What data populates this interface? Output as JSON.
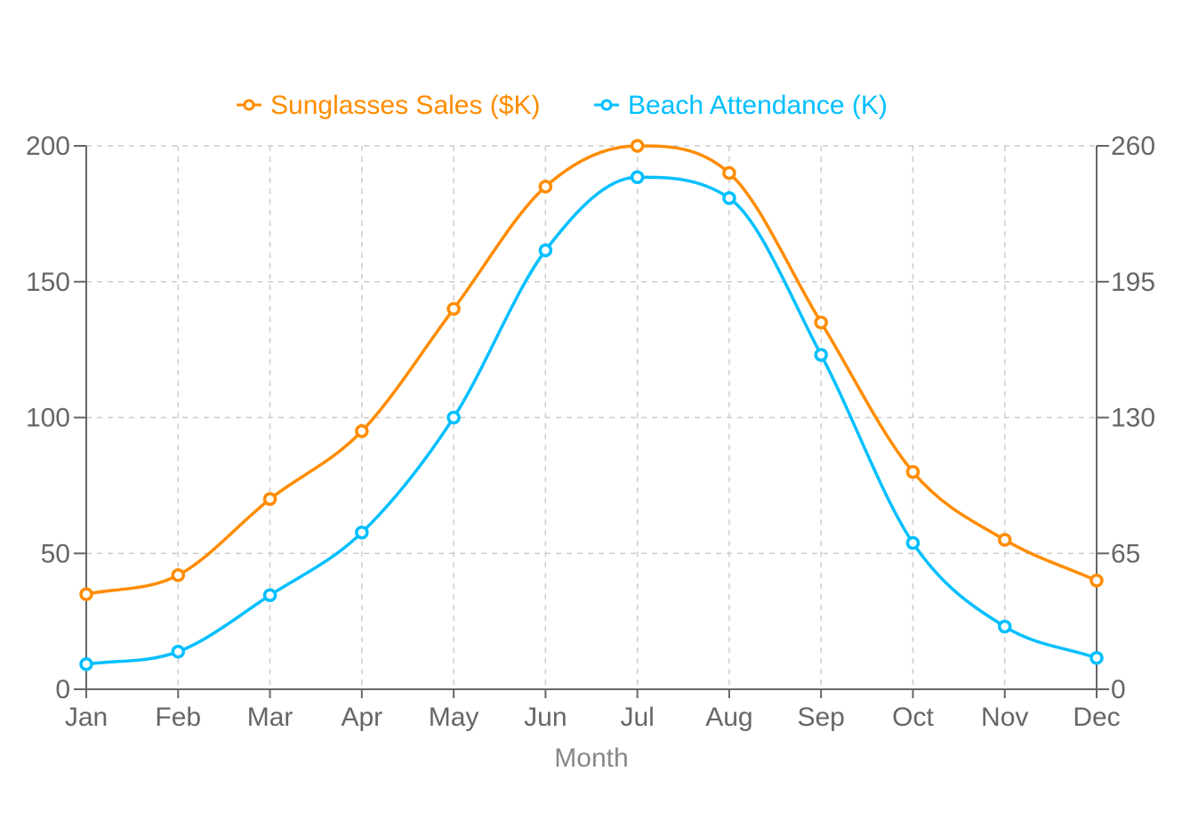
{
  "chart_data": {
    "type": "line",
    "title": "",
    "xlabel": "Month",
    "ylabel": "",
    "categories": [
      "Jan",
      "Feb",
      "Mar",
      "Apr",
      "May",
      "Jun",
      "Jul",
      "Aug",
      "Sep",
      "Oct",
      "Nov",
      "Dec"
    ],
    "series": [
      {
        "name": "Sunglasses Sales ($K)",
        "axis": "left",
        "color": "#FF8C00",
        "values": [
          35,
          42,
          70,
          95,
          140,
          185,
          200,
          190,
          135,
          80,
          55,
          40
        ]
      },
      {
        "name": "Beach Attendance (K)",
        "axis": "right",
        "color": "#00BFFF",
        "values": [
          12,
          18,
          45,
          75,
          130,
          210,
          245,
          235,
          160,
          70,
          30,
          15
        ]
      }
    ],
    "y_left": {
      "range": [
        0,
        200
      ],
      "ticks": [
        "0",
        "50",
        "100",
        "150",
        "200"
      ]
    },
    "y_right": {
      "range": [
        0,
        260
      ],
      "ticks": [
        "0",
        "65",
        "130",
        "195",
        "260"
      ]
    },
    "grid": true,
    "grid_style": "dashed",
    "legend_position": "top-center",
    "smooth": true
  }
}
